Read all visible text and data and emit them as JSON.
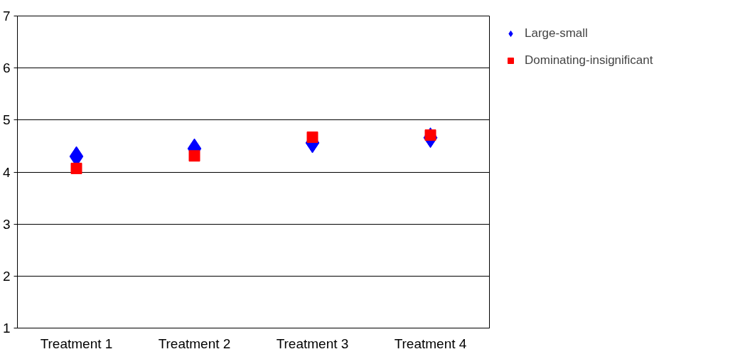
{
  "chart_data": {
    "type": "scatter",
    "categories": [
      "Treatment 1",
      "Treatment 2",
      "Treatment 3",
      "Treatment 4"
    ],
    "series": [
      {
        "name": "Large-small",
        "color": "#0000ff",
        "marker": "diamond",
        "values": [
          4.3,
          4.45,
          4.56,
          4.66
        ]
      },
      {
        "name": "Dominating-insignificant",
        "color": "#ff0000",
        "marker": "square",
        "values": [
          4.07,
          4.31,
          4.67,
          4.71
        ]
      }
    ],
    "ylim": [
      1,
      7
    ],
    "yticks": [
      1,
      2,
      3,
      4,
      5,
      6,
      7
    ],
    "grid": "y",
    "legend": "top right"
  }
}
